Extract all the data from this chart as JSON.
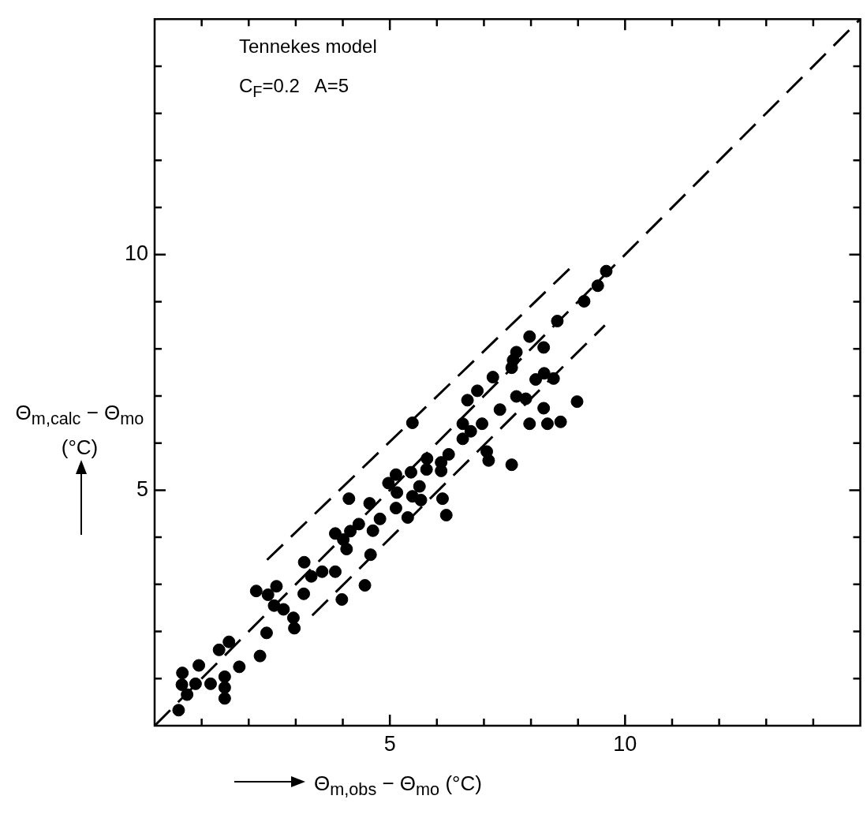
{
  "chart_data": {
    "type": "scatter",
    "xlabel": "Θ$_{m,obs}$ − Θ$_{mo}$ (°C)",
    "ylabel": "Θ$_{m,calc}$ − Θ$_{mo}$ (°C)",
    "annotations": [
      "Tennekes model",
      "C$_{F}$=0.2   A=5"
    ],
    "xlim": [
      0,
      15
    ],
    "ylim": [
      0,
      15
    ],
    "xticks": [
      {
        "value": 1,
        "label": null
      },
      {
        "value": 2,
        "label": null
      },
      {
        "value": 3,
        "label": null
      },
      {
        "value": 4,
        "label": null
      },
      5,
      {
        "value": 6,
        "label": null
      },
      {
        "value": 7,
        "label": null
      },
      {
        "value": 8,
        "label": null
      },
      {
        "value": 9,
        "label": null
      },
      10,
      {
        "value": 11,
        "label": null
      },
      {
        "value": 12,
        "label": null
      },
      {
        "value": 13,
        "label": null
      },
      {
        "value": 14,
        "label": null
      }
    ],
    "yticks": [
      {
        "value": 1,
        "label": null
      },
      {
        "value": 2,
        "label": null
      },
      {
        "value": 3,
        "label": null
      },
      {
        "value": 4,
        "label": null
      },
      5,
      {
        "value": 6,
        "label": null
      },
      {
        "value": 7,
        "label": null
      },
      {
        "value": 8,
        "label": null
      },
      {
        "value": 9,
        "label": null
      },
      10,
      {
        "value": 11,
        "label": null
      },
      {
        "value": 12,
        "label": null
      },
      {
        "value": 13,
        "label": null
      },
      {
        "value": 14,
        "label": null
      }
    ],
    "grid": false,
    "legend": false,
    "series": [
      {
        "type": "scatter",
        "color": "#000000",
        "marker": "circle",
        "x": [
          0.51,
          0.69,
          0.58,
          0.59,
          0.87,
          0.94,
          1.19,
          1.37,
          1.49,
          1.49,
          1.49,
          1.58,
          1.8,
          2.24,
          2.38,
          2.16,
          2.41,
          2.59,
          2.54,
          2.74,
          2.95,
          2.97,
          3.17,
          3.18,
          3.33,
          3.56,
          3.84,
          3.98,
          3.84,
          4.01,
          4.08,
          4.16,
          4.34,
          4.47,
          4.59,
          4.64,
          4.79,
          4.13,
          4.57,
          5.13,
          5.38,
          5.48,
          5.63,
          5.66,
          4.97,
          5.13,
          5.15,
          5.45,
          5.79,
          5.78,
          6.09,
          6.09,
          6.25,
          6.12,
          6.2,
          5.48,
          6.55,
          6.55,
          6.65,
          9.6,
          9.42,
          9.13,
          8.56,
          7.97,
          8.27,
          7.69,
          7.62,
          7.59,
          7.19,
          6.86,
          8.28,
          8.1,
          8.48,
          7.69,
          7.89,
          8.98,
          8.27,
          7.34,
          7.97,
          8.35,
          8.63,
          6.96,
          6.72,
          7.06,
          7.1,
          7.59
        ],
        "values": [
          0.33,
          0.66,
          0.87,
          1.12,
          0.89,
          1.28,
          0.89,
          1.61,
          1.04,
          0.81,
          0.58,
          1.78,
          1.25,
          1.48,
          1.97,
          2.86,
          2.78,
          2.96,
          2.55,
          2.47,
          2.29,
          2.07,
          2.8,
          3.47,
          3.17,
          3.27,
          3.27,
          2.68,
          4.08,
          3.95,
          3.75,
          4.13,
          4.28,
          2.98,
          3.63,
          4.14,
          4.39,
          4.82,
          4.72,
          4.62,
          4.42,
          4.87,
          5.08,
          4.79,
          5.15,
          5.33,
          4.95,
          5.38,
          5.67,
          5.44,
          5.59,
          5.41,
          5.76,
          4.82,
          4.47,
          6.43,
          6.41,
          6.09,
          6.91,
          9.65,
          9.34,
          9.01,
          8.59,
          8.26,
          8.03,
          7.93,
          7.76,
          7.6,
          7.4,
          7.11,
          7.48,
          7.35,
          7.37,
          6.99,
          6.94,
          6.88,
          6.74,
          6.71,
          6.41,
          6.41,
          6.45,
          6.41,
          6.25,
          5.82,
          5.63,
          5.54
        ]
      },
      {
        "type": "line",
        "color": "#000000",
        "line_style": "dashed",
        "marker": "none",
        "x": [
          0,
          15
        ],
        "values": [
          0,
          15
        ]
      },
      {
        "type": "line",
        "color": "#000000",
        "line_style": "dashed",
        "marker": "none",
        "x": [
          2.39,
          8.86
        ],
        "values": [
          3.52,
          9.74
        ]
      },
      {
        "type": "line",
        "color": "#000000",
        "line_style": "dashed",
        "marker": "none",
        "x": [
          3.35,
          9.57
        ],
        "values": [
          2.34,
          8.5
        ]
      }
    ]
  }
}
